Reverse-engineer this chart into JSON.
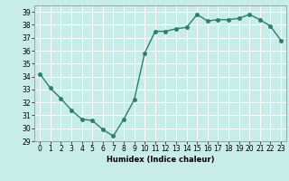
{
  "x": [
    0,
    1,
    2,
    3,
    4,
    5,
    6,
    7,
    8,
    9,
    10,
    11,
    12,
    13,
    14,
    15,
    16,
    17,
    18,
    19,
    20,
    21,
    22,
    23
  ],
  "y": [
    34.2,
    33.1,
    32.3,
    31.4,
    30.7,
    30.6,
    29.9,
    29.4,
    30.7,
    32.2,
    35.8,
    37.5,
    37.5,
    37.7,
    37.8,
    38.8,
    38.3,
    38.4,
    38.4,
    38.5,
    38.8,
    38.4,
    37.9,
    36.8
  ],
  "line_color": "#2e7d6e",
  "marker": "o",
  "markersize": 2.5,
  "linewidth": 1.0,
  "bg_color": "#c8ece8",
  "grid_color": "#ffffff",
  "xlabel": "Humidex (Indice chaleur)",
  "xlim": [
    -0.5,
    23.5
  ],
  "ylim": [
    29,
    39.5
  ],
  "yticks": [
    29,
    30,
    31,
    32,
    33,
    34,
    35,
    36,
    37,
    38,
    39
  ],
  "xticks": [
    0,
    1,
    2,
    3,
    4,
    5,
    6,
    7,
    8,
    9,
    10,
    11,
    12,
    13,
    14,
    15,
    16,
    17,
    18,
    19,
    20,
    21,
    22,
    23
  ],
  "tick_labelsize": 5.5,
  "xlabel_fontsize": 6.0
}
